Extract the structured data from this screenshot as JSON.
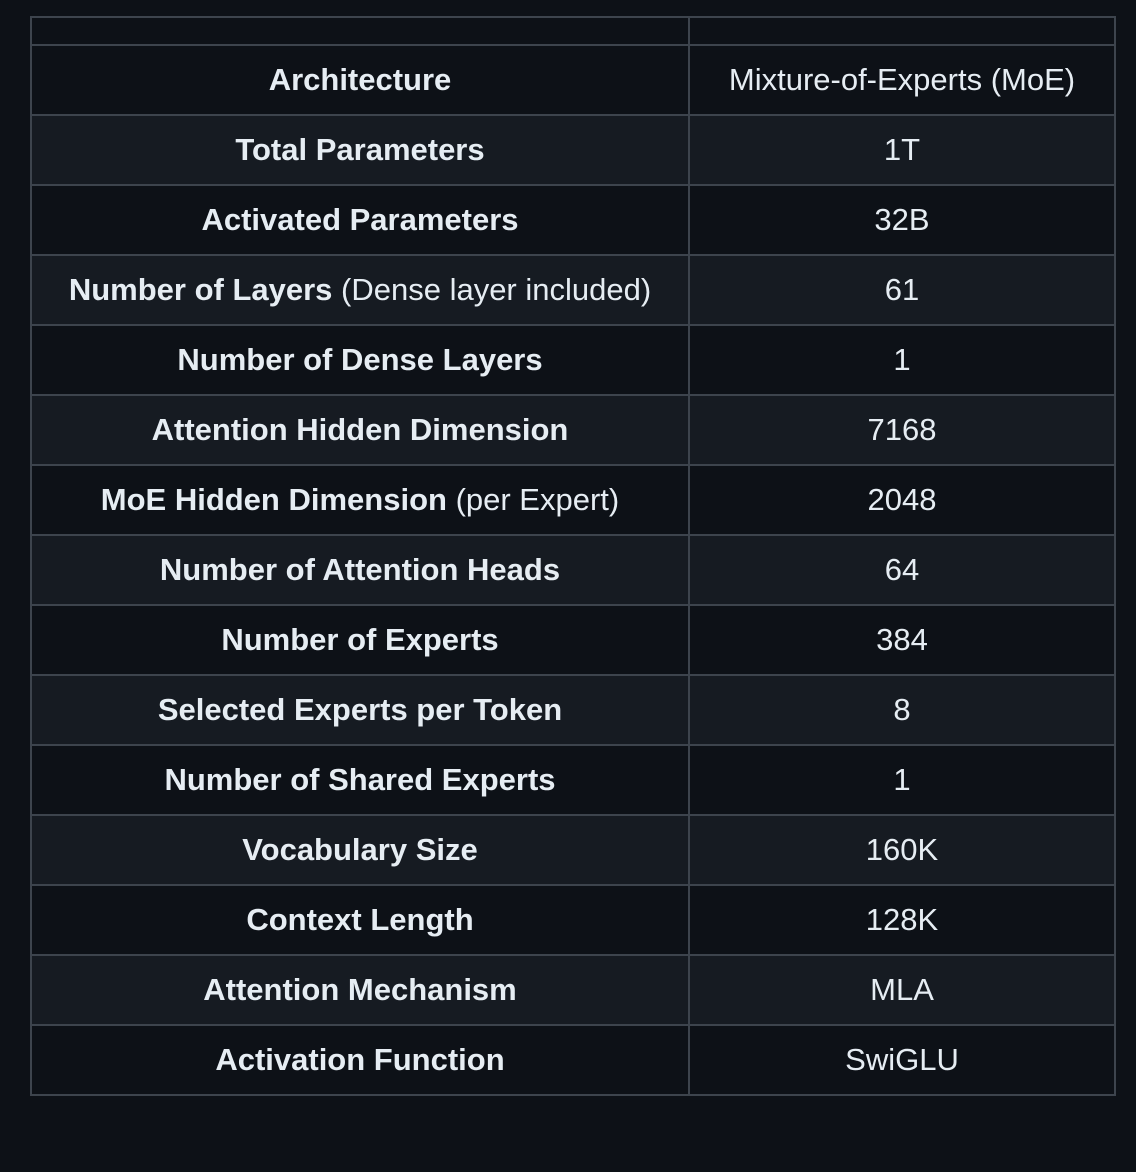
{
  "rows": [
    {
      "label": "Architecture",
      "note": "",
      "value": "Mixture-of-Experts (MoE)"
    },
    {
      "label": "Total Parameters",
      "note": "",
      "value": "1T"
    },
    {
      "label": "Activated Parameters",
      "note": "",
      "value": "32B"
    },
    {
      "label": "Number of Layers",
      "note": " (Dense layer included)",
      "value": "61"
    },
    {
      "label": "Number of Dense Layers",
      "note": "",
      "value": "1"
    },
    {
      "label": "Attention Hidden Dimension",
      "note": "",
      "value": "7168"
    },
    {
      "label": "MoE Hidden Dimension",
      "note": " (per Expert)",
      "value": "2048"
    },
    {
      "label": "Number of Attention Heads",
      "note": "",
      "value": "64"
    },
    {
      "label": "Number of Experts",
      "note": "",
      "value": "384"
    },
    {
      "label": "Selected Experts per Token",
      "note": "",
      "value": "8"
    },
    {
      "label": "Number of Shared Experts",
      "note": "",
      "value": "1"
    },
    {
      "label": "Vocabulary Size",
      "note": "",
      "value": "160K"
    },
    {
      "label": "Context Length",
      "note": "",
      "value": "128K"
    },
    {
      "label": "Attention Mechanism",
      "note": "",
      "value": "MLA"
    },
    {
      "label": "Activation Function",
      "note": "",
      "value": "SwiGLU"
    }
  ]
}
